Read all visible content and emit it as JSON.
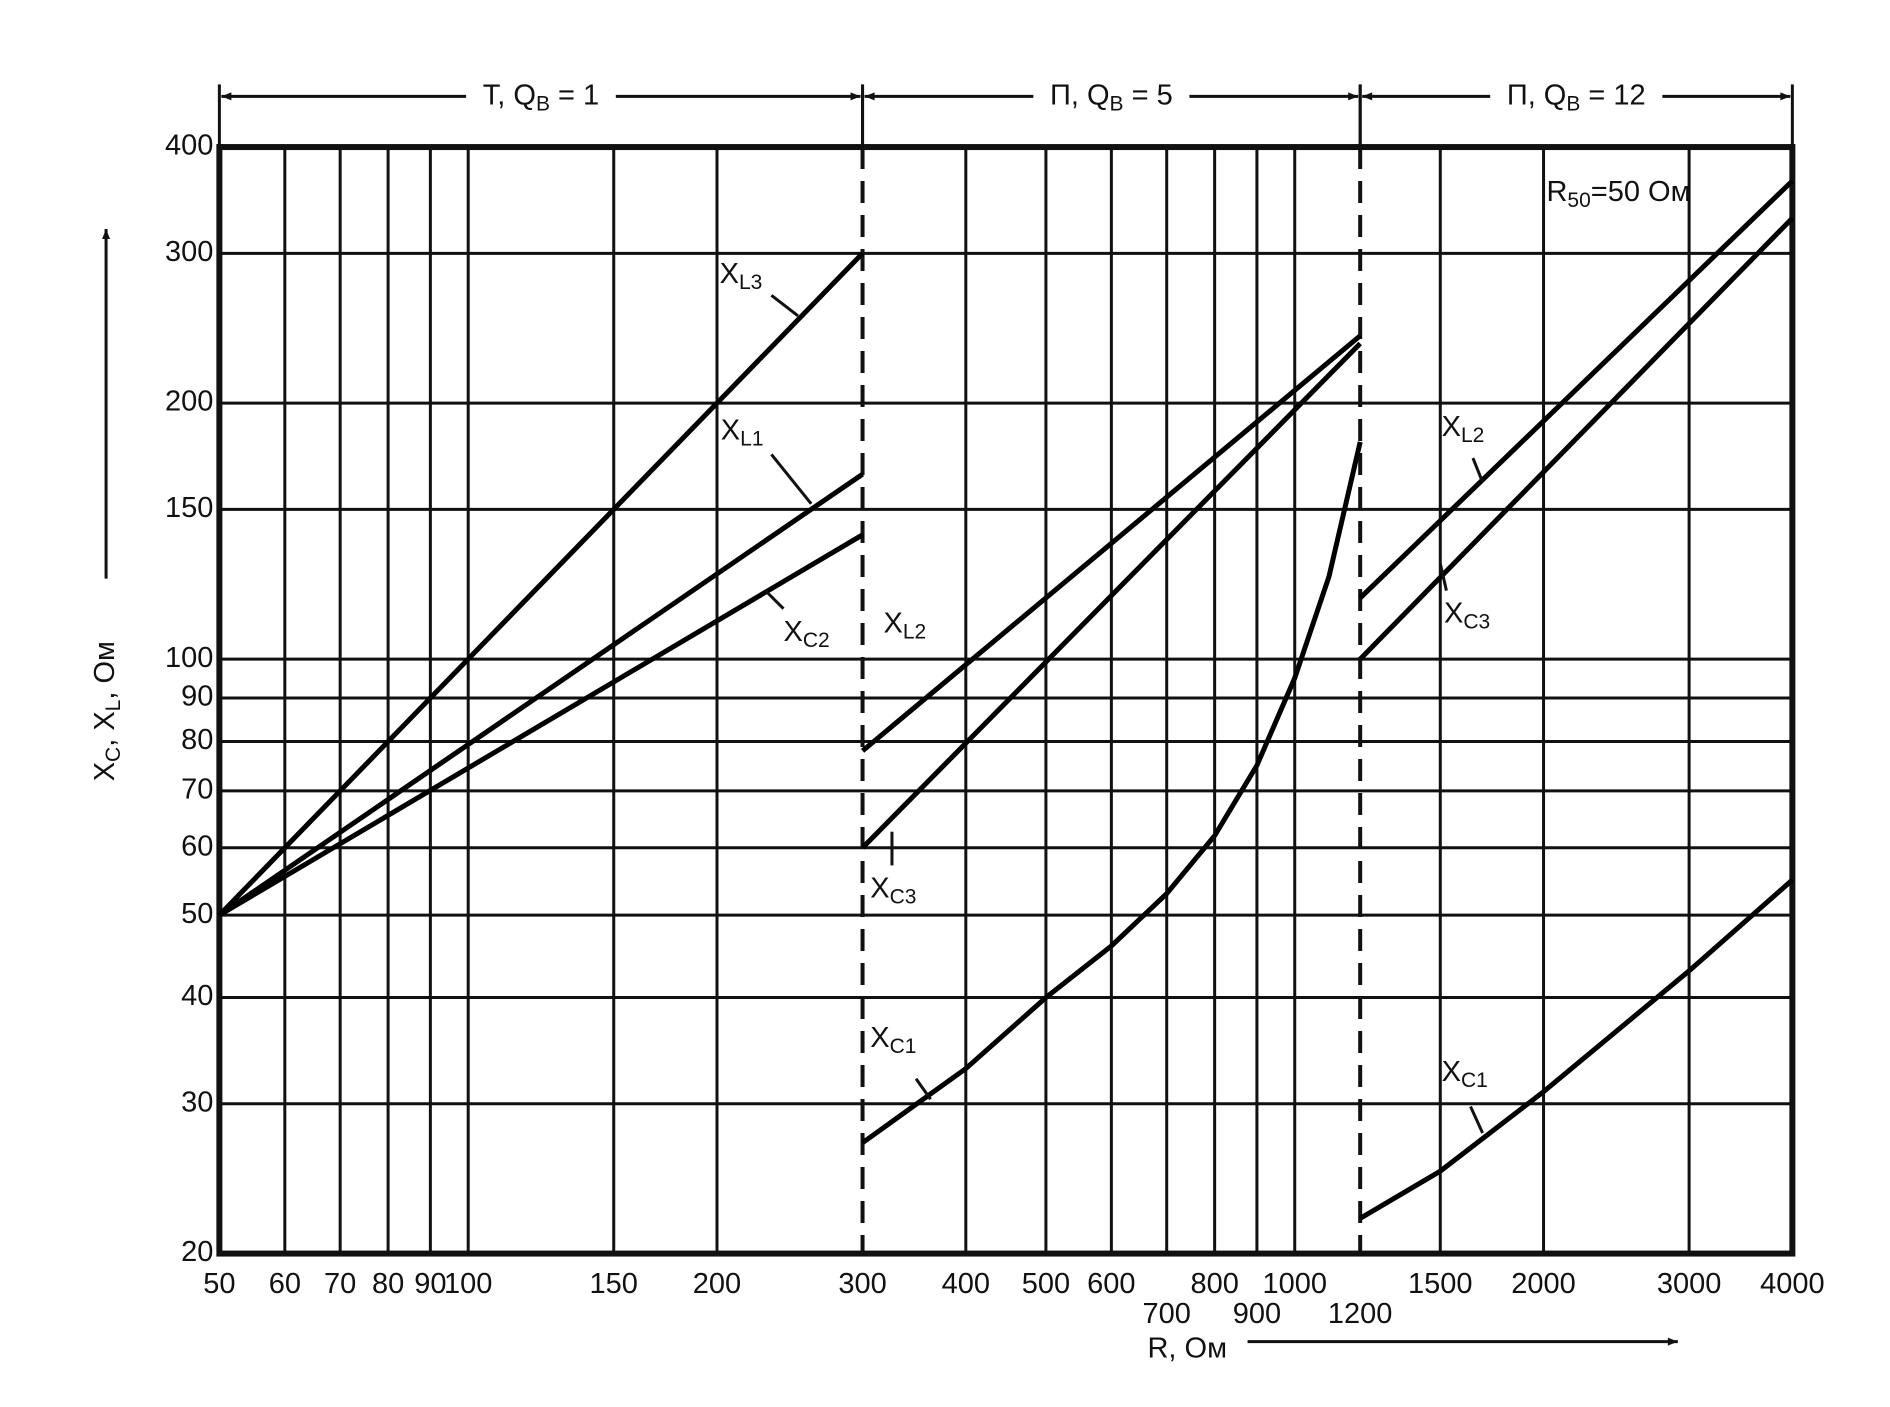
{
  "chart_data": {
    "type": "line",
    "xlabel": "R, Ом",
    "ylabel": "XC, XL, Ом",
    "annotation": "R50=50 Ом",
    "xscale": "log",
    "yscale": "log",
    "grid": true,
    "xlim": [
      50,
      4000
    ],
    "ylim": [
      20,
      400
    ],
    "xticks": [
      50,
      60,
      70,
      80,
      90,
      100,
      150,
      200,
      300,
      400,
      500,
      600,
      700,
      800,
      900,
      1000,
      1200,
      1500,
      2000,
      3000,
      4000
    ],
    "yticks": [
      20,
      30,
      40,
      50,
      60,
      70,
      80,
      90,
      100,
      150,
      200,
      300,
      400
    ],
    "segments": [
      {
        "label": "T, QB = 1",
        "from": 50,
        "to": 300
      },
      {
        "label": "П, QB = 5",
        "from": 300,
        "to": 1200
      },
      {
        "label": "П, QB = 12",
        "from": 1200,
        "to": 4000
      }
    ],
    "series": [
      {
        "name": "XL3",
        "color": "#000000",
        "x": [
          50,
          300
        ],
        "values": [
          50,
          300
        ]
      },
      {
        "name": "XL1",
        "color": "#000000",
        "x": [
          50,
          300
        ],
        "values": [
          50,
          165
        ]
      },
      {
        "name": "XC2",
        "color": "#000000",
        "x": [
          50,
          300
        ],
        "values": [
          50,
          140
        ]
      },
      {
        "name": "XL2",
        "color": "#000000",
        "x": [
          300,
          1200
        ],
        "values": [
          78,
          240
        ]
      },
      {
        "name": "XC3",
        "color": "#000000",
        "x": [
          300,
          1200
        ],
        "values": [
          60,
          235
        ]
      },
      {
        "name": "XC1",
        "color": "#000000",
        "x": [
          300,
          400,
          500,
          600,
          700,
          800,
          900,
          1000,
          1100,
          1200
        ],
        "values": [
          27,
          33,
          40,
          46,
          53,
          62,
          75,
          95,
          125,
          180
        ]
      },
      {
        "name": "XL2",
        "color": "#000000",
        "x": [
          1200,
          4000
        ],
        "values": [
          118,
          365
        ]
      },
      {
        "name": "XC3",
        "color": "#000000",
        "x": [
          1200,
          4000
        ],
        "values": [
          100,
          330
        ]
      },
      {
        "name": "XC1",
        "color": "#000000",
        "x": [
          1200,
          1500,
          2000,
          3000,
          4000
        ],
        "values": [
          22,
          25,
          31,
          43,
          55
        ]
      }
    ]
  }
}
